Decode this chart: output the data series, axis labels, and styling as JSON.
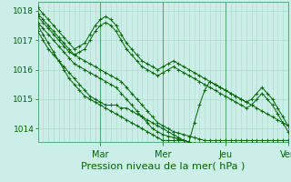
{
  "bg_color": "#cceee8",
  "grid_color_v": "#aad8cc",
  "grid_color_h": "#aad8cc",
  "line_color": "#006600",
  "xlabel": "Pression niveau de la mer( hPa )",
  "xlabel_fontsize": 8,
  "yticks": [
    1014,
    1015,
    1016,
    1017,
    1018
  ],
  "ytick_fontsize": 6.5,
  "ylim": [
    1013.55,
    1018.3
  ],
  "xlim": [
    0,
    48
  ],
  "day_positions": [
    12,
    24,
    36,
    48
  ],
  "day_labels": [
    "Mar",
    "Mer",
    "Jeu",
    "Ven"
  ],
  "series": [
    [
      1017.8,
      1017.6,
      1017.4,
      1017.2,
      1017.0,
      1016.8,
      1016.6,
      1016.5,
      1016.4,
      1016.3,
      1016.2,
      1016.1,
      1016.0,
      1015.9,
      1015.8,
      1015.7,
      1015.6,
      1015.4,
      1015.2,
      1015.0,
      1014.8,
      1014.6,
      1014.4,
      1014.2,
      1014.1,
      1014.0,
      1013.9,
      1013.85,
      1013.8,
      1013.75,
      1013.7,
      1013.65,
      1013.6,
      1013.6,
      1013.6,
      1013.6,
      1013.6,
      1013.6,
      1013.6,
      1013.6,
      1013.6,
      1013.6,
      1013.6,
      1013.6,
      1013.6,
      1013.6,
      1013.6,
      1013.6,
      1013.6
    ],
    [
      1017.6,
      1017.4,
      1017.2,
      1017.0,
      1016.8,
      1016.6,
      1016.4,
      1016.2,
      1016.1,
      1016.0,
      1015.9,
      1015.8,
      1015.7,
      1015.6,
      1015.5,
      1015.4,
      1015.2,
      1015.0,
      1014.8,
      1014.6,
      1014.4,
      1014.2,
      1014.0,
      1013.9,
      1013.8,
      1013.75,
      1013.7,
      1013.65,
      1013.6,
      1013.55,
      1013.5,
      1013.5,
      1013.5,
      1013.5,
      1013.5,
      1013.5,
      1013.5,
      1013.5,
      1013.5,
      1013.5,
      1013.5,
      1013.5,
      1013.5,
      1013.5,
      1013.5,
      1013.5,
      1013.5,
      1013.5,
      1013.5
    ],
    [
      1017.3,
      1017.0,
      1016.7,
      1016.5,
      1016.3,
      1016.1,
      1015.9,
      1015.7,
      1015.5,
      1015.3,
      1015.1,
      1015.0,
      1014.9,
      1014.8,
      1014.8,
      1014.8,
      1014.7,
      1014.7,
      1014.6,
      1014.5,
      1014.4,
      1014.3,
      1014.2,
      1014.1,
      1014.0,
      1013.9,
      1013.8,
      1013.7,
      1013.6,
      1013.55,
      1013.5,
      1013.5,
      1013.5,
      1013.5,
      1013.5,
      1013.5,
      1013.5,
      1013.5,
      1013.5,
      1013.5,
      1013.5,
      1013.5,
      1013.5,
      1013.5,
      1013.5,
      1013.5,
      1013.5,
      1013.5,
      1013.5
    ],
    [
      1017.9,
      1017.7,
      1017.5,
      1017.3,
      1017.1,
      1016.9,
      1016.7,
      1016.5,
      1016.6,
      1016.7,
      1017.0,
      1017.3,
      1017.5,
      1017.6,
      1017.5,
      1017.3,
      1017.0,
      1016.7,
      1016.5,
      1016.3,
      1016.1,
      1016.0,
      1015.9,
      1015.8,
      1015.9,
      1016.0,
      1016.1,
      1016.0,
      1015.9,
      1015.8,
      1015.7,
      1015.6,
      1015.5,
      1015.4,
      1015.3,
      1015.2,
      1015.1,
      1015.0,
      1014.9,
      1014.8,
      1014.7,
      1014.8,
      1015.0,
      1015.2,
      1015.0,
      1014.8,
      1014.5,
      1014.2,
      1013.9
    ],
    [
      1018.1,
      1017.9,
      1017.7,
      1017.5,
      1017.3,
      1017.1,
      1016.9,
      1016.7,
      1016.8,
      1016.9,
      1017.2,
      1017.5,
      1017.7,
      1017.8,
      1017.7,
      1017.5,
      1017.2,
      1016.9,
      1016.7,
      1016.5,
      1016.3,
      1016.2,
      1016.1,
      1016.0,
      1016.1,
      1016.2,
      1016.3,
      1016.2,
      1016.1,
      1016.0,
      1015.9,
      1015.8,
      1015.7,
      1015.6,
      1015.5,
      1015.4,
      1015.3,
      1015.2,
      1015.1,
      1015.0,
      1014.9,
      1015.0,
      1015.2,
      1015.4,
      1015.2,
      1015.0,
      1014.7,
      1014.4,
      1014.1
    ],
    [
      1017.5,
      1017.2,
      1016.9,
      1016.6,
      1016.3,
      1016.0,
      1015.7,
      1015.5,
      1015.3,
      1015.1,
      1015.0,
      1014.9,
      1014.8,
      1014.7,
      1014.6,
      1014.5,
      1014.4,
      1014.3,
      1014.2,
      1014.1,
      1014.0,
      1013.9,
      1013.8,
      1013.7,
      1013.6,
      1013.6,
      1013.6,
      1013.6,
      1013.6,
      1013.55,
      1014.2,
      1014.8,
      1015.3,
      1015.6,
      1015.5,
      1015.4,
      1015.3,
      1015.2,
      1015.1,
      1015.0,
      1014.9,
      1014.8,
      1014.7,
      1014.6,
      1014.5,
      1014.4,
      1014.3,
      1014.2,
      1014.1
    ]
  ]
}
